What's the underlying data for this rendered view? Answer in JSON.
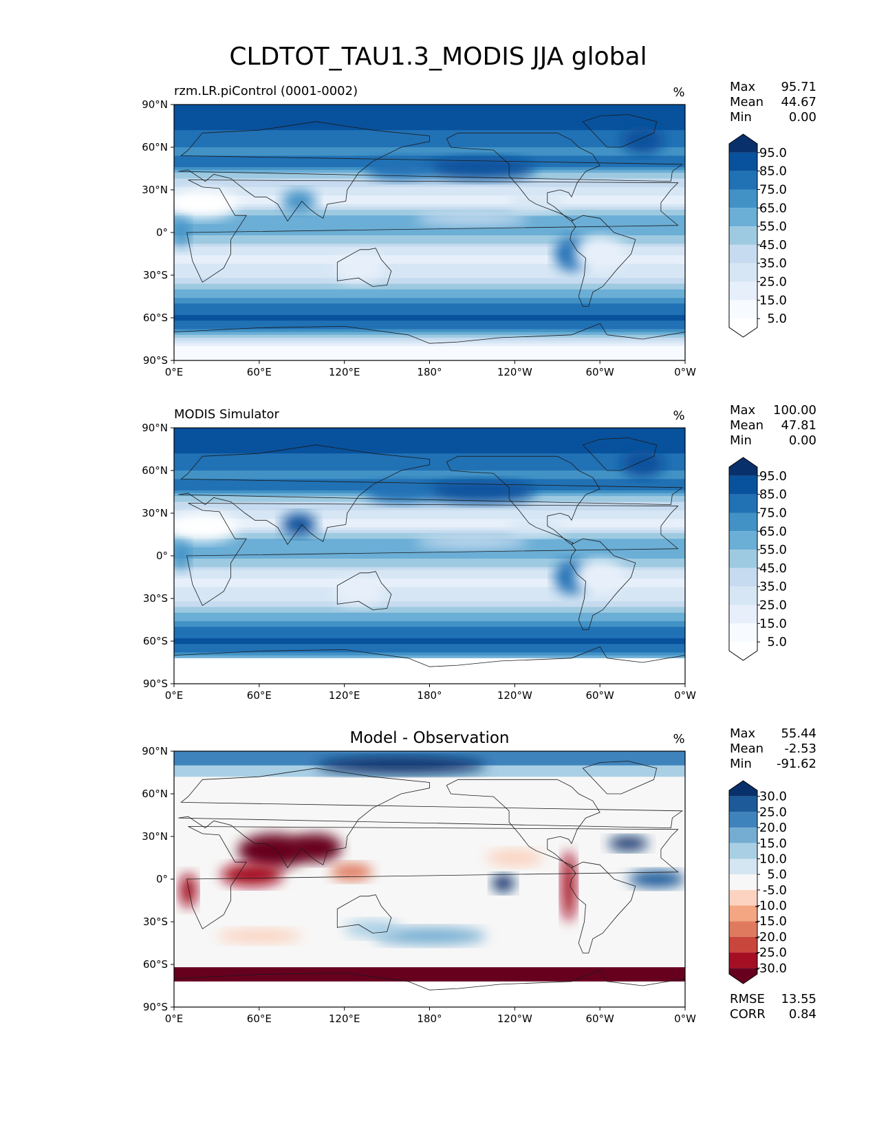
{
  "title": "CLDTOT_TAU1.3_MODIS JJA global",
  "axes": {
    "lat_ticks": [
      "90°N",
      "60°N",
      "30°N",
      "0°",
      "30°S",
      "60°S",
      "90°S"
    ],
    "lon_ticks": [
      "0°E",
      "60°E",
      "120°E",
      "180°",
      "120°W",
      "60°W",
      "0°W"
    ]
  },
  "panels": [
    {
      "left_title": "rzm.LR.piControl (0001-0002)",
      "center_title": "",
      "units": "%",
      "stats": [
        {
          "label": "Max",
          "value": "95.71"
        },
        {
          "label": "Mean",
          "value": "44.67"
        },
        {
          "label": "Min",
          "value": "0.00"
        }
      ],
      "colorbar": {
        "labels": [
          "95.0",
          "85.0",
          "75.0",
          "65.0",
          "55.0",
          "45.0",
          "35.0",
          "25.0",
          "15.0",
          "5.0"
        ],
        "colors": [
          "#08306b",
          "#08519c",
          "#2171b5",
          "#4292c6",
          "#6baed6",
          "#9ecae1",
          "#c6dbef",
          "#d6e6f4",
          "#e7f0fa",
          "#f7fbff",
          "#ffffff"
        ]
      }
    },
    {
      "left_title": "MODIS Simulator",
      "center_title": "",
      "units": "%",
      "stats": [
        {
          "label": "Max",
          "value": "100.00"
        },
        {
          "label": "Mean",
          "value": "47.81"
        },
        {
          "label": "Min",
          "value": "0.00"
        }
      ],
      "colorbar": {
        "labels": [
          "95.0",
          "85.0",
          "75.0",
          "65.0",
          "55.0",
          "45.0",
          "35.0",
          "25.0",
          "15.0",
          "5.0"
        ],
        "colors": [
          "#08306b",
          "#08519c",
          "#2171b5",
          "#4292c6",
          "#6baed6",
          "#9ecae1",
          "#c6dbef",
          "#d6e6f4",
          "#e7f0fa",
          "#f7fbff",
          "#ffffff"
        ]
      }
    },
    {
      "left_title": "",
      "center_title": "Model - Observation",
      "units": "%",
      "stats": [
        {
          "label": "Max",
          "value": "55.44"
        },
        {
          "label": "Mean",
          "value": "-2.53"
        },
        {
          "label": "Min",
          "value": "-91.62"
        }
      ],
      "colorbar": {
        "labels": [
          "30.0",
          "25.0",
          "20.0",
          "15.0",
          "10.0",
          "5.0",
          "-5.0",
          "-10.0",
          "-15.0",
          "-20.0",
          "-25.0",
          "-30.0"
        ],
        "colors": [
          "#08306b",
          "#1c5a99",
          "#3f83bd",
          "#74add1",
          "#a9cfe5",
          "#d4e6f1",
          "#f7f7f7",
          "#fbd3c0",
          "#f4a582",
          "#e07a5f",
          "#c9463d",
          "#a50f23",
          "#67001f"
        ]
      },
      "metrics": [
        {
          "label": "RMSE",
          "value": "13.55"
        },
        {
          "label": "CORR",
          "value": "0.84"
        }
      ]
    }
  ],
  "chart_data": [
    {
      "type": "heatmap",
      "title": "rzm.LR.piControl (0001-0002)",
      "variable": "CLDTOT_TAU1.3_MODIS",
      "season": "JJA",
      "units": "%",
      "xlim": [
        0,
        360
      ],
      "ylim": [
        -90,
        90
      ],
      "xticks": [
        "0°E",
        "60°E",
        "120°E",
        "180°",
        "120°W",
        "60°W",
        "0°W"
      ],
      "yticks": [
        "90°N",
        "60°N",
        "30°N",
        "0°",
        "30°S",
        "60°S",
        "90°S"
      ],
      "levels": [
        0,
        5,
        15,
        25,
        35,
        45,
        55,
        65,
        75,
        85,
        95,
        100
      ],
      "max": 95.71,
      "mean": 44.67,
      "min": 0.0
    },
    {
      "type": "heatmap",
      "title": "MODIS Simulator",
      "variable": "CLDTOT_TAU1.3_MODIS",
      "season": "JJA",
      "units": "%",
      "xlim": [
        0,
        360
      ],
      "ylim": [
        -90,
        90
      ],
      "xticks": [
        "0°E",
        "60°E",
        "120°E",
        "180°",
        "120°W",
        "60°W",
        "0°W"
      ],
      "yticks": [
        "90°N",
        "60°N",
        "30°N",
        "0°",
        "30°S",
        "60°S",
        "90°S"
      ],
      "levels": [
        0,
        5,
        15,
        25,
        35,
        45,
        55,
        65,
        75,
        85,
        95,
        100
      ],
      "max": 100.0,
      "mean": 47.81,
      "min": 0.0
    },
    {
      "type": "heatmap",
      "title": "Model - Observation",
      "variable": "CLDTOT_TAU1.3_MODIS",
      "season": "JJA",
      "units": "%",
      "xlim": [
        0,
        360
      ],
      "ylim": [
        -90,
        90
      ],
      "xticks": [
        "0°E",
        "60°E",
        "120°E",
        "180°",
        "120°W",
        "60°W",
        "0°W"
      ],
      "yticks": [
        "90°N",
        "60°N",
        "30°N",
        "0°",
        "30°S",
        "60°S",
        "90°S"
      ],
      "levels": [
        -30,
        -25,
        -20,
        -15,
        -10,
        -5,
        5,
        10,
        15,
        20,
        25,
        30
      ],
      "max": 55.44,
      "mean": -2.53,
      "min": -91.62,
      "rmse": 13.55,
      "corr": 0.84
    }
  ]
}
